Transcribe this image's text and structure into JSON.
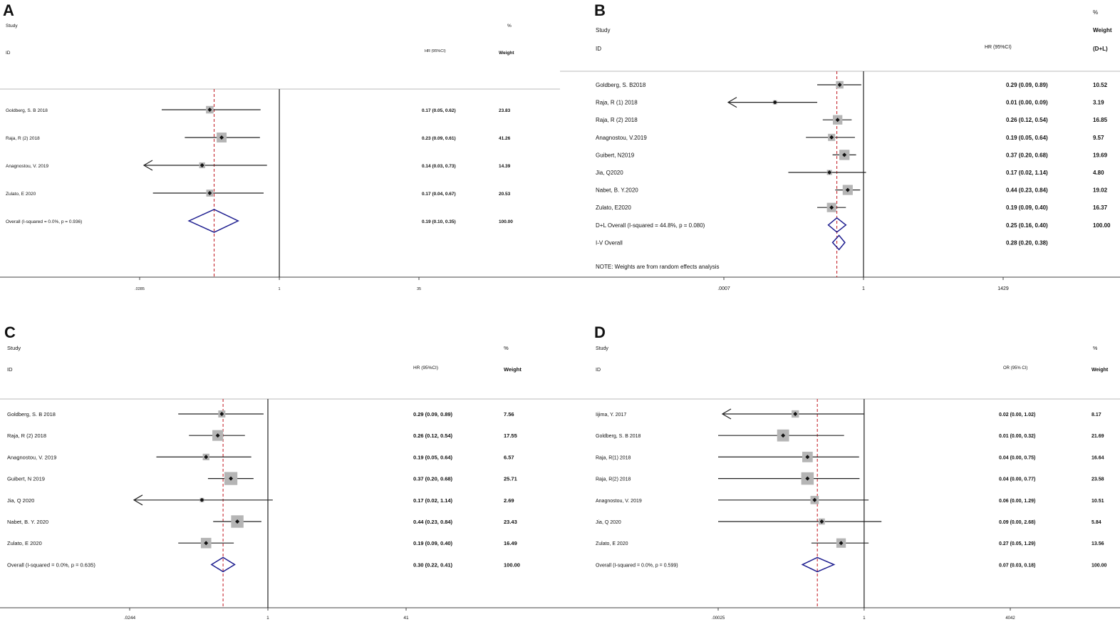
{
  "panels": [
    {
      "letter": "A",
      "header_pct": "%",
      "header_study": "Study",
      "header_weight": "Weight",
      "header_weight2": "",
      "header_id": "ID",
      "header_measure": "HR (95%CI)",
      "note": "",
      "chart_data": {
        "type": "forest",
        "scale": "log",
        "xticks": [
          {
            "label": ".0285",
            "value": 0.0285
          },
          {
            "label": "1",
            "value": 1
          },
          {
            "label": "35",
            "value": 35
          }
        ],
        "reference_line": 1,
        "pooled_line": 0.19,
        "studies": [
          {
            "name": "Goldberg, S. B 2018",
            "est": 0.17,
            "lo": 0.05,
            "hi": 0.62,
            "ci_text": "0.17 (0.05, 0.62)",
            "weight": "23.83",
            "arrow": false
          },
          {
            "name": "Raja, R  (2)  2018",
            "est": 0.23,
            "lo": 0.09,
            "hi": 0.61,
            "ci_text": "0.23 (0.09, 0.61)",
            "weight": "41.26",
            "arrow": false
          },
          {
            "name": "Anagnostou, V. 2019",
            "est": 0.14,
            "lo": 0.03,
            "hi": 0.73,
            "ci_text": "0.14 (0.03, 0.73)",
            "weight": "14.39",
            "arrow": true
          },
          {
            "name": "Zulato, E 2020",
            "est": 0.17,
            "lo": 0.04,
            "hi": 0.67,
            "ci_text": "0.17 (0.04, 0.67)",
            "weight": "20.53",
            "arrow": false
          }
        ],
        "pooled": [
          {
            "name": "Overall  (I-squared = 0.0%, p = 0.936)",
            "est": 0.19,
            "lo": 0.1,
            "hi": 0.35,
            "ci_text": "0.19 (0.10, 0.35)",
            "weight": "100.00"
          }
        ]
      }
    },
    {
      "letter": "B",
      "header_pct": "%",
      "header_study": "Study",
      "header_weight": "Weight",
      "header_weight2": "(D+L)",
      "header_id": "ID",
      "header_measure": "HR (95%CI)",
      "note": "NOTE: Weights are from random effects analysis",
      "chart_data": {
        "type": "forest",
        "scale": "log",
        "xticks": [
          {
            "label": ".0007",
            "value": 0.0007
          },
          {
            "label": "1",
            "value": 1
          },
          {
            "label": "1429",
            "value": 1429
          }
        ],
        "reference_line": 1,
        "pooled_line": 0.25,
        "studies": [
          {
            "name": "Goldberg, S. B2018",
            "est": 0.29,
            "lo": 0.09,
            "hi": 0.89,
            "ci_text": "0.29 (0.09, 0.89)",
            "weight": "10.52",
            "arrow": false
          },
          {
            "name": "Raja, R  (1)  2018",
            "est": 0.01,
            "lo": 0.0,
            "hi": 0.09,
            "ci_text": "0.01 (0.00, 0.09)",
            "weight": "3.19",
            "arrow": true
          },
          {
            "name": "Raja, R  (2)  2018",
            "est": 0.26,
            "lo": 0.12,
            "hi": 0.54,
            "ci_text": "0.26 (0.12, 0.54)",
            "weight": "16.85",
            "arrow": false
          },
          {
            "name": "Anagnostou, V.2019",
            "est": 0.19,
            "lo": 0.05,
            "hi": 0.64,
            "ci_text": "0.19 (0.05, 0.64)",
            "weight": "9.57",
            "arrow": false
          },
          {
            "name": "Guibert, N2019",
            "est": 0.37,
            "lo": 0.2,
            "hi": 0.68,
            "ci_text": "0.37 (0.20, 0.68)",
            "weight": "19.69",
            "arrow": false
          },
          {
            "name": "Jia, Q2020",
            "est": 0.17,
            "lo": 0.02,
            "hi": 1.14,
            "ci_text": "0.17 (0.02, 1.14)",
            "weight": "4.80",
            "arrow": false
          },
          {
            "name": "Nabet, B. Y.2020",
            "est": 0.44,
            "lo": 0.23,
            "hi": 0.84,
            "ci_text": "0.44 (0.23, 0.84)",
            "weight": "19.02",
            "arrow": false
          },
          {
            "name": "Zulato, E2020",
            "est": 0.19,
            "lo": 0.09,
            "hi": 0.4,
            "ci_text": "0.19 (0.09, 0.40)",
            "weight": "16.37",
            "arrow": false
          }
        ],
        "pooled": [
          {
            "name": "D+L Overall  (I-squared = 44.8%, p = 0.080)",
            "est": 0.25,
            "lo": 0.16,
            "hi": 0.4,
            "ci_text": "0.25 (0.16, 0.40)",
            "weight": "100.00"
          },
          {
            "name": "I-V Overall",
            "est": 0.28,
            "lo": 0.2,
            "hi": 0.38,
            "ci_text": "0.28 (0.20, 0.38)",
            "weight": ""
          }
        ]
      }
    },
    {
      "letter": "C",
      "header_pct": "%",
      "header_study": "Study",
      "header_weight": "Weight",
      "header_weight2": "",
      "header_id": "ID",
      "header_measure": "HR (95%CI)",
      "note": "",
      "chart_data": {
        "type": "forest",
        "scale": "log",
        "xticks": [
          {
            "label": ".0244",
            "value": 0.0244
          },
          {
            "label": "1",
            "value": 1
          },
          {
            "label": "41",
            "value": 41
          }
        ],
        "reference_line": 1,
        "pooled_line": 0.3,
        "studies": [
          {
            "name": "Goldberg, S. B 2018",
            "est": 0.29,
            "lo": 0.09,
            "hi": 0.89,
            "ci_text": "0.29 (0.09, 0.89)",
            "weight": "7.56",
            "arrow": false
          },
          {
            "name": "Raja, R  (2)  2018",
            "est": 0.26,
            "lo": 0.12,
            "hi": 0.54,
            "ci_text": "0.26 (0.12, 0.54)",
            "weight": "17.55",
            "arrow": false
          },
          {
            "name": "Anagnostou, V. 2019",
            "est": 0.19,
            "lo": 0.05,
            "hi": 0.64,
            "ci_text": "0.19 (0.05, 0.64)",
            "weight": "6.57",
            "arrow": false
          },
          {
            "name": "Guibert, N 2019",
            "est": 0.37,
            "lo": 0.2,
            "hi": 0.68,
            "ci_text": "0.37 (0.20, 0.68)",
            "weight": "25.71",
            "arrow": false
          },
          {
            "name": "Jia, Q 2020",
            "est": 0.17,
            "lo": 0.02,
            "hi": 1.14,
            "ci_text": "0.17 (0.02, 1.14)",
            "weight": "2.69",
            "arrow": true
          },
          {
            "name": "Nabet, B. Y. 2020",
            "est": 0.44,
            "lo": 0.23,
            "hi": 0.84,
            "ci_text": "0.44 (0.23, 0.84)",
            "weight": "23.43",
            "arrow": false
          },
          {
            "name": "Zulato, E 2020",
            "est": 0.19,
            "lo": 0.09,
            "hi": 0.4,
            "ci_text": "0.19 (0.09, 0.40)",
            "weight": "16.49",
            "arrow": false
          }
        ],
        "pooled": [
          {
            "name": "Overall  (I-squared = 0.0%, p = 0.635)",
            "est": 0.3,
            "lo": 0.22,
            "hi": 0.41,
            "ci_text": "0.30 (0.22, 0.41)",
            "weight": "100.00"
          }
        ]
      }
    },
    {
      "letter": "D",
      "header_pct": "%",
      "header_study": "Study",
      "header_weight": "Weight",
      "header_weight2": "",
      "header_id": "ID",
      "header_measure": "OR (95% CI)",
      "note": "",
      "chart_data": {
        "type": "forest",
        "scale": "log",
        "xticks": [
          {
            "label": ".00025",
            "value": 0.00025
          },
          {
            "label": "1",
            "value": 1
          },
          {
            "label": "4042",
            "value": 4042
          }
        ],
        "reference_line": 1,
        "pooled_line": 0.07,
        "studies": [
          {
            "name": "Iijima, Y. 2017",
            "est": 0.02,
            "lo": 0.0,
            "hi": 1.02,
            "ci_text": "0.02 (0.00, 1.02)",
            "weight": "8.17",
            "arrow": true
          },
          {
            "name": "Goldberg, S. B 2018",
            "est": 0.01,
            "lo": 0.0,
            "hi": 0.32,
            "ci_text": "0.01 (0.00, 0.32)",
            "weight": "21.69",
            "arrow": false
          },
          {
            "name": "Raja, R(1) 2018",
            "est": 0.04,
            "lo": 0.0,
            "hi": 0.75,
            "ci_text": "0.04 (0.00, 0.75)",
            "weight": "16.64",
            "arrow": false
          },
          {
            "name": "Raja, R(2) 2018",
            "est": 0.04,
            "lo": 0.0,
            "hi": 0.77,
            "ci_text": "0.04 (0.00, 0.77)",
            "weight": "23.58",
            "arrow": false
          },
          {
            "name": "Anagnostou, V. 2019",
            "est": 0.06,
            "lo": 0.0,
            "hi": 1.29,
            "ci_text": "0.06 (0.00, 1.29)",
            "weight": "10.51",
            "arrow": false
          },
          {
            "name": "Jia, Q 2020",
            "est": 0.09,
            "lo": 0.0,
            "hi": 2.68,
            "ci_text": "0.09 (0.00, 2.68)",
            "weight": "5.84",
            "arrow": false
          },
          {
            "name": "Zulato, E 2020",
            "est": 0.27,
            "lo": 0.05,
            "hi": 1.29,
            "ci_text": "0.27 (0.05, 1.29)",
            "weight": "13.56",
            "arrow": false
          }
        ],
        "pooled": [
          {
            "name": "Overall  (I-squared = 0.0%, p = 0.599)",
            "est": 0.07,
            "lo": 0.03,
            "hi": 0.18,
            "ci_text": "0.07 (0.03, 0.18)",
            "weight": "100.00"
          }
        ]
      }
    }
  ]
}
